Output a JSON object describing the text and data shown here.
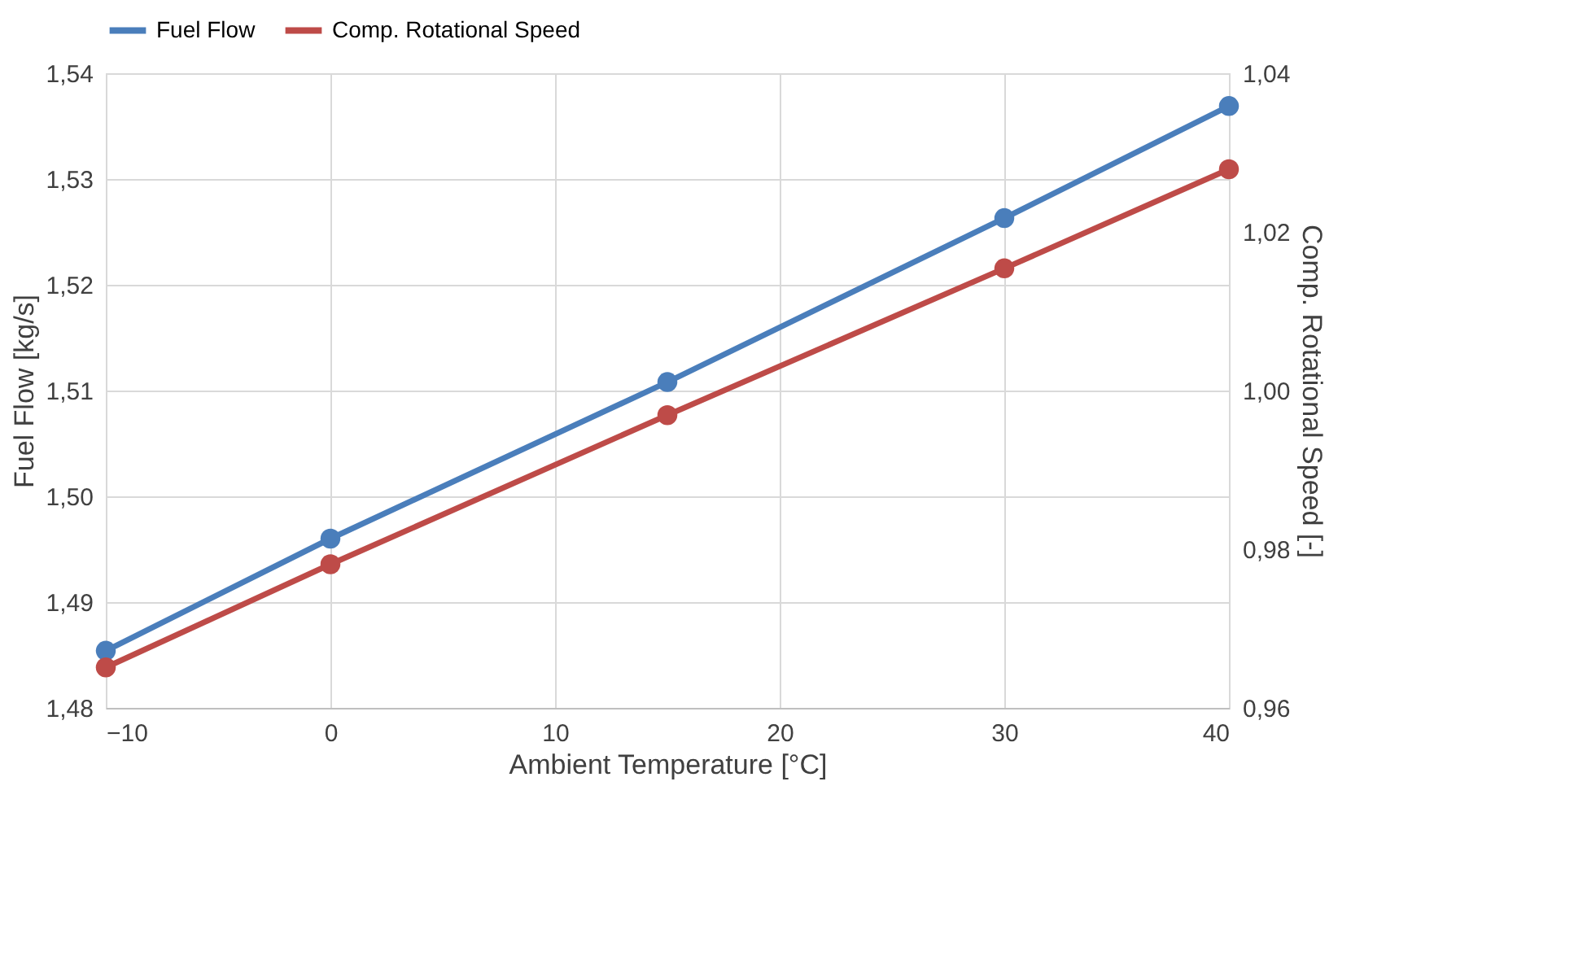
{
  "chart_data": {
    "type": "line",
    "xlabel": "Ambient Temperature [°C]",
    "ylabel": "Fuel Flow [kg/s]",
    "y2label": "Comp. Rotational Speed [-]",
    "x": [
      -10,
      0,
      15,
      30,
      40
    ],
    "series": [
      {
        "name": "Fuel Flow",
        "color": "#4a7ebb",
        "values": [
          1.4854,
          1.496,
          1.5108,
          1.5263,
          1.5369
        ]
      },
      {
        "name": "Comp. Rotational Speed",
        "color": "#be4b48",
        "axis": "y2",
        "values": [
          0.9651,
          0.9781,
          0.9969,
          1.0154,
          1.0279
        ]
      }
    ],
    "xlim": [
      -10,
      40
    ],
    "xticks": [
      -10,
      0,
      10,
      20,
      30,
      40
    ],
    "ylim": [
      1.48,
      1.54
    ],
    "yticks": [
      {
        "value": 1.48,
        "label": "1,48"
      },
      {
        "value": 1.49,
        "label": "1,49"
      },
      {
        "value": 1.5,
        "label": "1,50"
      },
      {
        "value": 1.51,
        "label": "1,51"
      },
      {
        "value": 1.52,
        "label": "1,52"
      },
      {
        "value": 1.53,
        "label": "1,53"
      },
      {
        "value": 1.54,
        "label": "1,54"
      }
    ],
    "y2lim": [
      0.96,
      1.04
    ],
    "y2ticks": [
      {
        "value": 0.96,
        "label": "0,96"
      },
      {
        "value": 0.98,
        "label": "0,98"
      },
      {
        "value": 1.0,
        "label": "1,00"
      },
      {
        "value": 1.02,
        "label": "1,02"
      },
      {
        "value": 1.04,
        "label": "1,04"
      }
    ],
    "grid": true,
    "legend": "top",
    "marker": "circle",
    "line_style": "solid"
  }
}
